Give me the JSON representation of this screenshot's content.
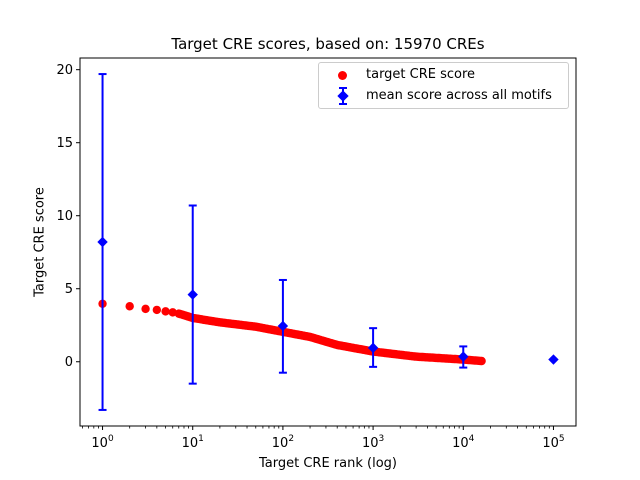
{
  "chart_data": {
    "type": "scatter",
    "title": "Target CRE scores, based on: 15970 CREs",
    "xlabel": "Target CRE rank (log)",
    "ylabel": "Target CRE score",
    "x_scale": "log",
    "xlim_log10": [
      -0.25,
      5.25
    ],
    "ylim": [
      -4.4,
      20.8
    ],
    "x_tick_exponents": [
      0,
      1,
      2,
      3,
      4,
      5
    ],
    "y_ticks": [
      0,
      5,
      10,
      15,
      20
    ],
    "n_cres": 15970,
    "grid": false,
    "legend_position": "upper right",
    "series": [
      {
        "name": "target CRE score",
        "color": "#ff0000",
        "marker": "circle",
        "n_points": 15970,
        "anchors": [
          [
            1,
            3.97
          ],
          [
            2,
            3.8
          ],
          [
            3,
            3.62
          ],
          [
            4,
            3.55
          ],
          [
            5,
            3.45
          ],
          [
            6,
            3.38
          ],
          [
            7,
            3.3
          ],
          [
            10,
            3.0
          ],
          [
            20,
            2.7
          ],
          [
            50,
            2.4
          ],
          [
            100,
            2.05
          ],
          [
            200,
            1.7
          ],
          [
            400,
            1.15
          ],
          [
            1000,
            0.7
          ],
          [
            3000,
            0.35
          ],
          [
            10000,
            0.15
          ],
          [
            15970,
            0.05
          ]
        ]
      },
      {
        "name": "mean score across all motifs",
        "color": "#0000ff",
        "marker": "diamond",
        "points": [
          {
            "x": 1,
            "y": 8.2,
            "err_low": -3.3,
            "err_high": 19.7
          },
          {
            "x": 10,
            "y": 4.6,
            "err_low": -1.5,
            "err_high": 10.7
          },
          {
            "x": 100,
            "y": 2.45,
            "err_low": -0.75,
            "err_high": 5.6
          },
          {
            "x": 1000,
            "y": 0.95,
            "err_low": -0.35,
            "err_high": 2.3
          },
          {
            "x": 10000,
            "y": 0.35,
            "err_low": -0.4,
            "err_high": 1.05
          },
          {
            "x": 100000,
            "y": 0.15,
            "err_low": null,
            "err_high": null
          }
        ]
      }
    ]
  }
}
